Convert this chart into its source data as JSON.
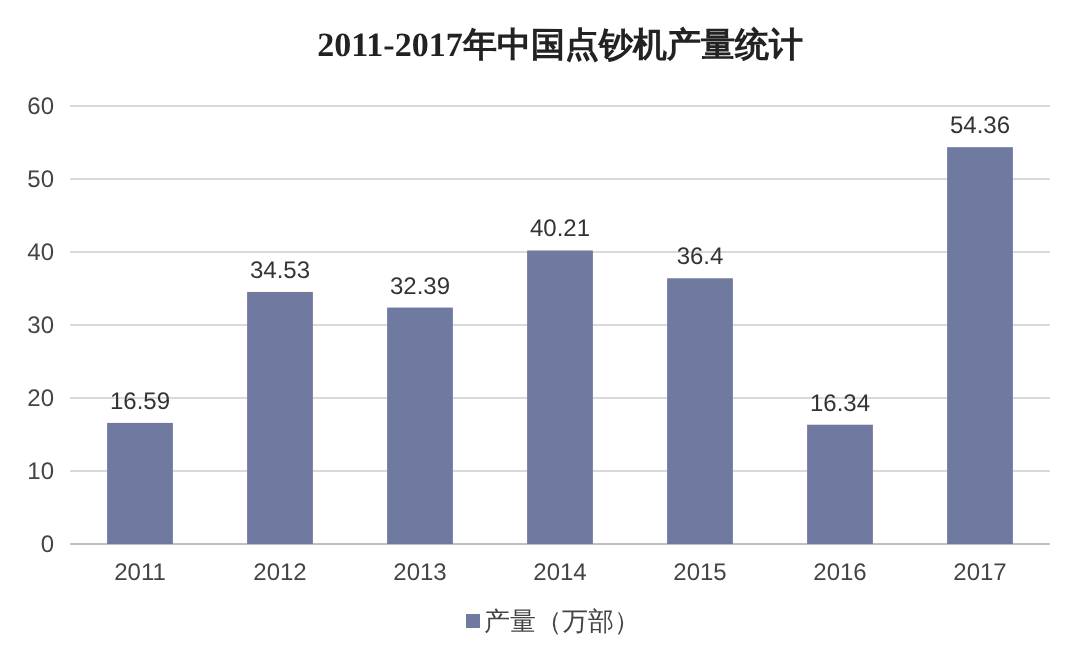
{
  "chart_data": {
    "type": "bar",
    "title": "2011-2017年中国点钞机产量统计",
    "categories": [
      "2011",
      "2012",
      "2013",
      "2014",
      "2015",
      "2016",
      "2017"
    ],
    "series": [
      {
        "name": "产量（万部）",
        "color": "#7079a0",
        "values": [
          16.59,
          34.53,
          32.39,
          40.21,
          36.4,
          16.34,
          54.36
        ]
      }
    ],
    "ylim": [
      0,
      60
    ],
    "yticks": [
      0,
      10,
      20,
      30,
      40,
      50,
      60
    ],
    "grid": "y",
    "legend": "bottom",
    "data_labels": true
  }
}
